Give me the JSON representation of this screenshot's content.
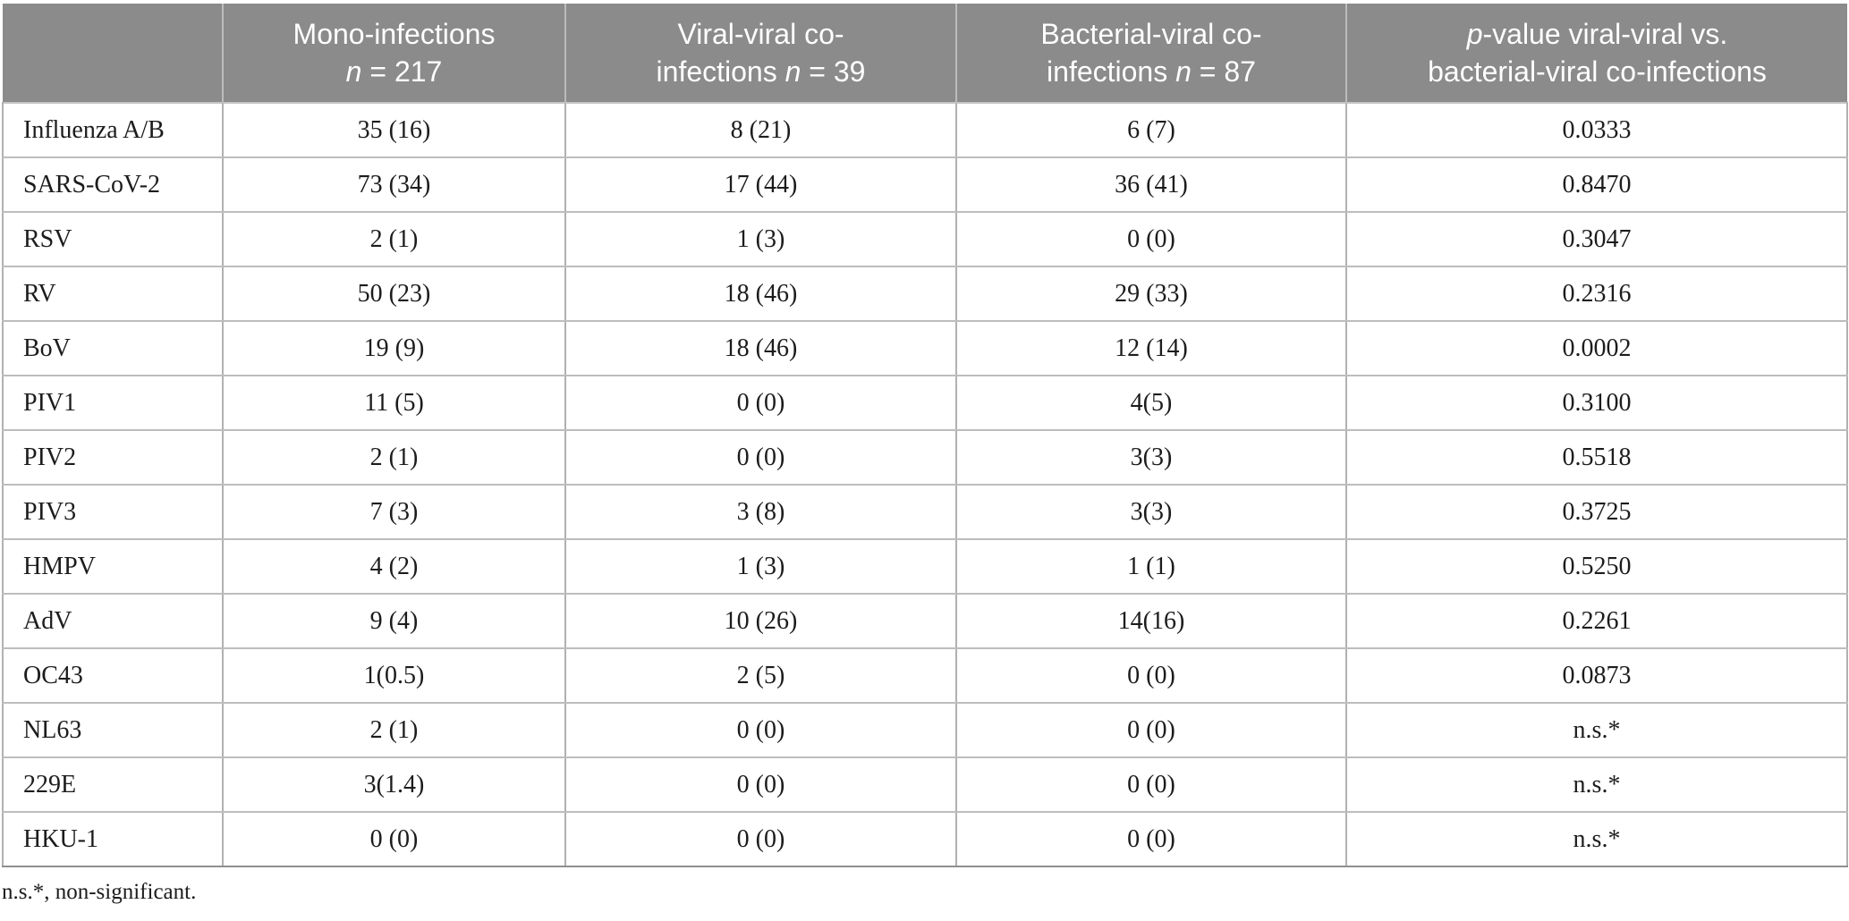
{
  "header": {
    "mono": {
      "line1": "Mono-infections",
      "n_italic": "n",
      "n_rest": " = 217"
    },
    "viral": {
      "line1": "Viral-viral co-",
      "line2_pre": "infections ",
      "n_italic": "n",
      "n_rest": " = 39"
    },
    "bacterial": {
      "line1": "Bacterial-viral co-",
      "line2_pre": "infections ",
      "n_italic": "n",
      "n_rest": " = 87"
    },
    "pvalue": {
      "p_italic": "p",
      "line1_rest": "-value viral-viral vs.",
      "line2": "bacterial-viral co-infections"
    }
  },
  "rows": [
    {
      "label": "Influenza A/B",
      "mono": "35 (16)",
      "viral_viral": "8 (21)",
      "bacterial_viral": "6 (7)",
      "p_value": "0.0333"
    },
    {
      "label": "SARS-CoV-2",
      "mono": "73 (34)",
      "viral_viral": "17 (44)",
      "bacterial_viral": "36 (41)",
      "p_value": "0.8470"
    },
    {
      "label": "RSV",
      "mono": "2 (1)",
      "viral_viral": "1 (3)",
      "bacterial_viral": "0 (0)",
      "p_value": "0.3047"
    },
    {
      "label": "RV",
      "mono": "50 (23)",
      "viral_viral": "18 (46)",
      "bacterial_viral": "29 (33)",
      "p_value": "0.2316"
    },
    {
      "label": "BoV",
      "mono": "19 (9)",
      "viral_viral": "18 (46)",
      "bacterial_viral": "12 (14)",
      "p_value": "0.0002"
    },
    {
      "label": "PIV1",
      "mono": "11 (5)",
      "viral_viral": "0 (0)",
      "bacterial_viral": "4(5)",
      "p_value": "0.3100"
    },
    {
      "label": "PIV2",
      "mono": "2 (1)",
      "viral_viral": "0 (0)",
      "bacterial_viral": "3(3)",
      "p_value": "0.5518"
    },
    {
      "label": "PIV3",
      "mono": "7 (3)",
      "viral_viral": "3 (8)",
      "bacterial_viral": "3(3)",
      "p_value": "0.3725"
    },
    {
      "label": "HMPV",
      "mono": "4 (2)",
      "viral_viral": "1 (3)",
      "bacterial_viral": "1 (1)",
      "p_value": "0.5250"
    },
    {
      "label": "AdV",
      "mono": "9 (4)",
      "viral_viral": "10 (26)",
      "bacterial_viral": "14(16)",
      "p_value": "0.2261"
    },
    {
      "label": "OC43",
      "mono": "1(0.5)",
      "viral_viral": "2 (5)",
      "bacterial_viral": "0 (0)",
      "p_value": "0.0873"
    },
    {
      "label": "NL63",
      "mono": "2 (1)",
      "viral_viral": "0 (0)",
      "bacterial_viral": "0 (0)",
      "p_value": "n.s.*"
    },
    {
      "label": "229E",
      "mono": "3(1.4)",
      "viral_viral": "0 (0)",
      "bacterial_viral": "0 (0)",
      "p_value": "n.s.*"
    },
    {
      "label": "HKU-1",
      "mono": "0 (0)",
      "viral_viral": "0 (0)",
      "bacterial_viral": "0 (0)",
      "p_value": "n.s.*"
    }
  ],
  "footnote": "n.s.*, non-significant.",
  "colors": {
    "header_bg": "#8b8b8b",
    "header_text": "#ffffff",
    "grid_line": "#b1b1b1",
    "body_text": "#1c1c1c"
  }
}
